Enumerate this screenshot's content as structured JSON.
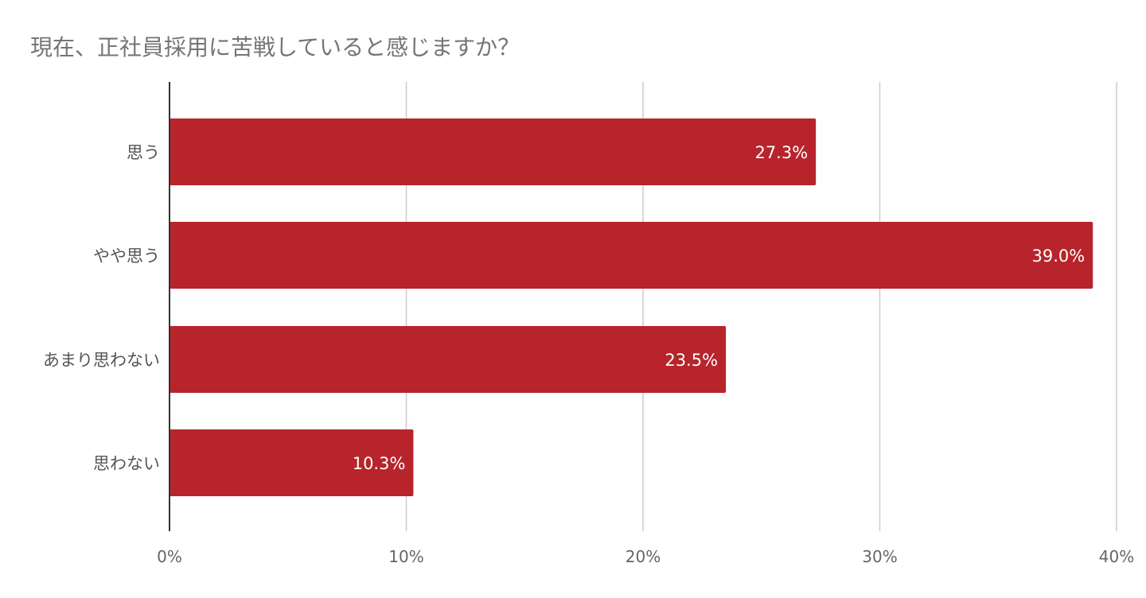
{
  "chart_data": {
    "type": "bar",
    "orientation": "horizontal",
    "title": "現在、正社員採用に苦戦していると感じますか？",
    "categories": [
      "思う",
      "やや思う",
      "あまり思わない",
      "思わない"
    ],
    "values": [
      27.3,
      39.0,
      23.5,
      10.3
    ],
    "data_labels": [
      "27.3%",
      "39.0%",
      "23.5%",
      "10.3%"
    ],
    "x_ticks": [
      0,
      10,
      20,
      30,
      40
    ],
    "x_tick_labels": [
      "0%",
      "10%",
      "20%",
      "30%",
      "40%"
    ],
    "xlim": [
      0,
      40
    ],
    "grid": true,
    "legend": "none",
    "bar_color": "#b7242c",
    "grid_color": "#cccccc",
    "axis_color": "#333333"
  }
}
